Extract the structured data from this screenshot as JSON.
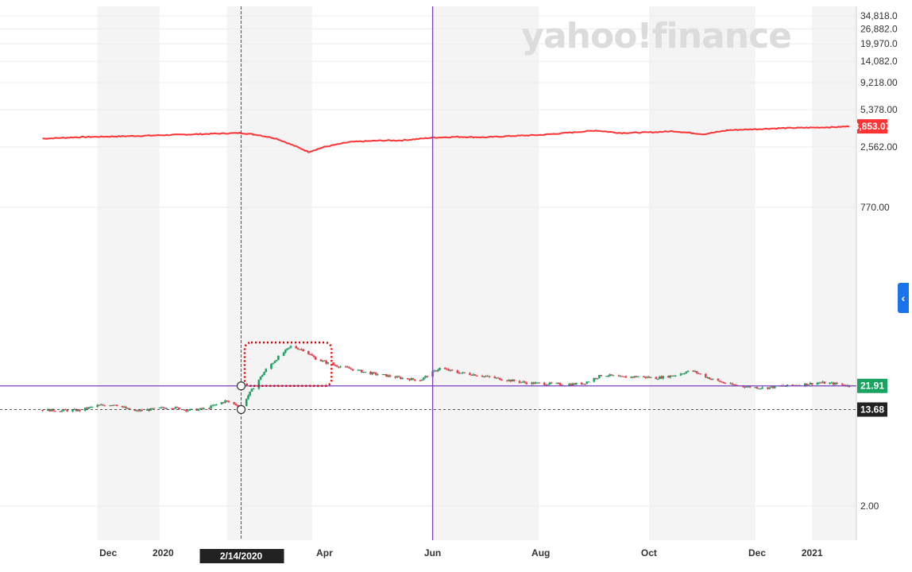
{
  "watermark": "yahoo!finance",
  "crosshair_date": "2/14/2020",
  "collapse_icon": "chevron-left-icon",
  "colors": {
    "up": "#1aa260",
    "down": "#e63946",
    "comparison_line": "#ff3333",
    "horizontal_line": "#7b3fbf",
    "vertical_line": "#7b3fbf",
    "crosshair": "#b22222",
    "annotation_box": "#e00000",
    "tag_green": "#1aa260",
    "tag_red": "#ff3333",
    "tag_dark": "#222222"
  },
  "chart_data": {
    "type": "line",
    "scale": "log",
    "y_ticks": [
      "34,818.0",
      "26,882.0",
      "19,970.0",
      "14,082.0",
      "9,218.00",
      "5,378.00",
      "2,562.00",
      "770.00",
      "2.00"
    ],
    "x_ticks": [
      "Dec",
      "2020",
      "Apr",
      "Jun",
      "Aug",
      "Oct",
      "Dec",
      "2021"
    ],
    "price_tags": {
      "comparison_last": "3,853.07",
      "last_price": "21.91",
      "crosshair_price": "13.68"
    },
    "series": [
      {
        "type": "line",
        "dates": [
          "2019-10-25",
          "2019-11-15",
          "2019-12-15",
          "2020-01-15",
          "2020-02-14",
          "2020-02-24",
          "2020-03-05",
          "2020-03-16",
          "2020-03-23",
          "2020-04-01",
          "2020-04-15",
          "2020-05-01",
          "2020-05-15",
          "2020-06-01",
          "2020-06-15",
          "2020-07-01",
          "2020-07-15",
          "2020-08-01",
          "2020-08-15",
          "2020-09-01",
          "2020-09-15",
          "2020-10-01",
          "2020-10-15",
          "2020-11-01",
          "2020-11-15",
          "2020-12-01",
          "2020-12-15",
          "2021-01-01",
          "2021-01-15",
          "2021-01-22"
        ],
        "values": [
          3022,
          3110,
          3180,
          3280,
          3380,
          3240,
          3020,
          2580,
          2320,
          2560,
          2820,
          2900,
          2920,
          3080,
          3130,
          3100,
          3180,
          3250,
          3380,
          3550,
          3380,
          3420,
          3500,
          3300,
          3580,
          3650,
          3720,
          3760,
          3800,
          3853
        ]
      },
      {
        "type": "candlestick",
        "dates": [
          "2019-10-25",
          "2019-11-05",
          "2019-11-15",
          "2019-11-25",
          "2019-12-05",
          "2019-12-15",
          "2019-12-25",
          "2020-01-05",
          "2020-01-15",
          "2020-01-25",
          "2020-02-05",
          "2020-02-14",
          "2020-02-20",
          "2020-02-28",
          "2020-03-06",
          "2020-03-13",
          "2020-03-20",
          "2020-03-27",
          "2020-04-05",
          "2020-04-15",
          "2020-04-25",
          "2020-05-05",
          "2020-05-15",
          "2020-05-25",
          "2020-06-05",
          "2020-06-15",
          "2020-06-25",
          "2020-07-05",
          "2020-07-15",
          "2020-07-25",
          "2020-08-05",
          "2020-08-15",
          "2020-08-25",
          "2020-09-05",
          "2020-09-15",
          "2020-09-25",
          "2020-10-05",
          "2020-10-15",
          "2020-10-25",
          "2020-11-05",
          "2020-11-15",
          "2020-11-25",
          "2020-12-05",
          "2020-12-15",
          "2020-12-25",
          "2021-01-05",
          "2021-01-15",
          "2021-01-22"
        ],
        "values": [
          13.6,
          13.4,
          13.5,
          14.8,
          15.2,
          13.2,
          13.7,
          14.4,
          13.5,
          13.9,
          16.2,
          14.6,
          20.2,
          30.4,
          39.0,
          48.0,
          45.0,
          37.8,
          33.5,
          31.0,
          28.5,
          27.0,
          25.5,
          24.6,
          31.2,
          28.6,
          27.4,
          25.8,
          24.4,
          23.2,
          22.9,
          22.5,
          23.0,
          27.5,
          26.0,
          26.4,
          25.6,
          27.0,
          29.8,
          25.2,
          22.6,
          21.6,
          21.0,
          21.8,
          22.4,
          23.4,
          22.8,
          21.91
        ]
      }
    ]
  }
}
